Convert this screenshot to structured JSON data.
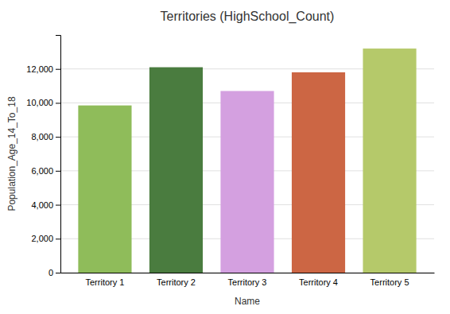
{
  "chart_data": {
    "type": "bar",
    "title": "Territories (HighSchool_Count)",
    "xlabel": "Name",
    "ylabel": "Population_Age_14_To_18",
    "categories": [
      "Territory 1",
      "Territory 2",
      "Territory 3",
      "Territory 4",
      "Territory 5"
    ],
    "values": [
      9850,
      12100,
      10700,
      11800,
      13200
    ],
    "colors": [
      "#8fbc5a",
      "#4a7c3f",
      "#d4a0e0",
      "#cc6644",
      "#b5c96a"
    ],
    "ylim": [
      0,
      14000
    ],
    "yticks": [
      0,
      {
        "value": 2000,
        "label": "2,000"
      },
      {
        "value": 4000,
        "label": "4,000"
      },
      {
        "value": 6000,
        "label": "6,000"
      },
      {
        "value": 8000,
        "label": "8,000"
      },
      {
        "value": 10000,
        "label": "10,000"
      },
      {
        "value": 12000,
        "label": "12,000"
      }
    ],
    "grid": true
  }
}
